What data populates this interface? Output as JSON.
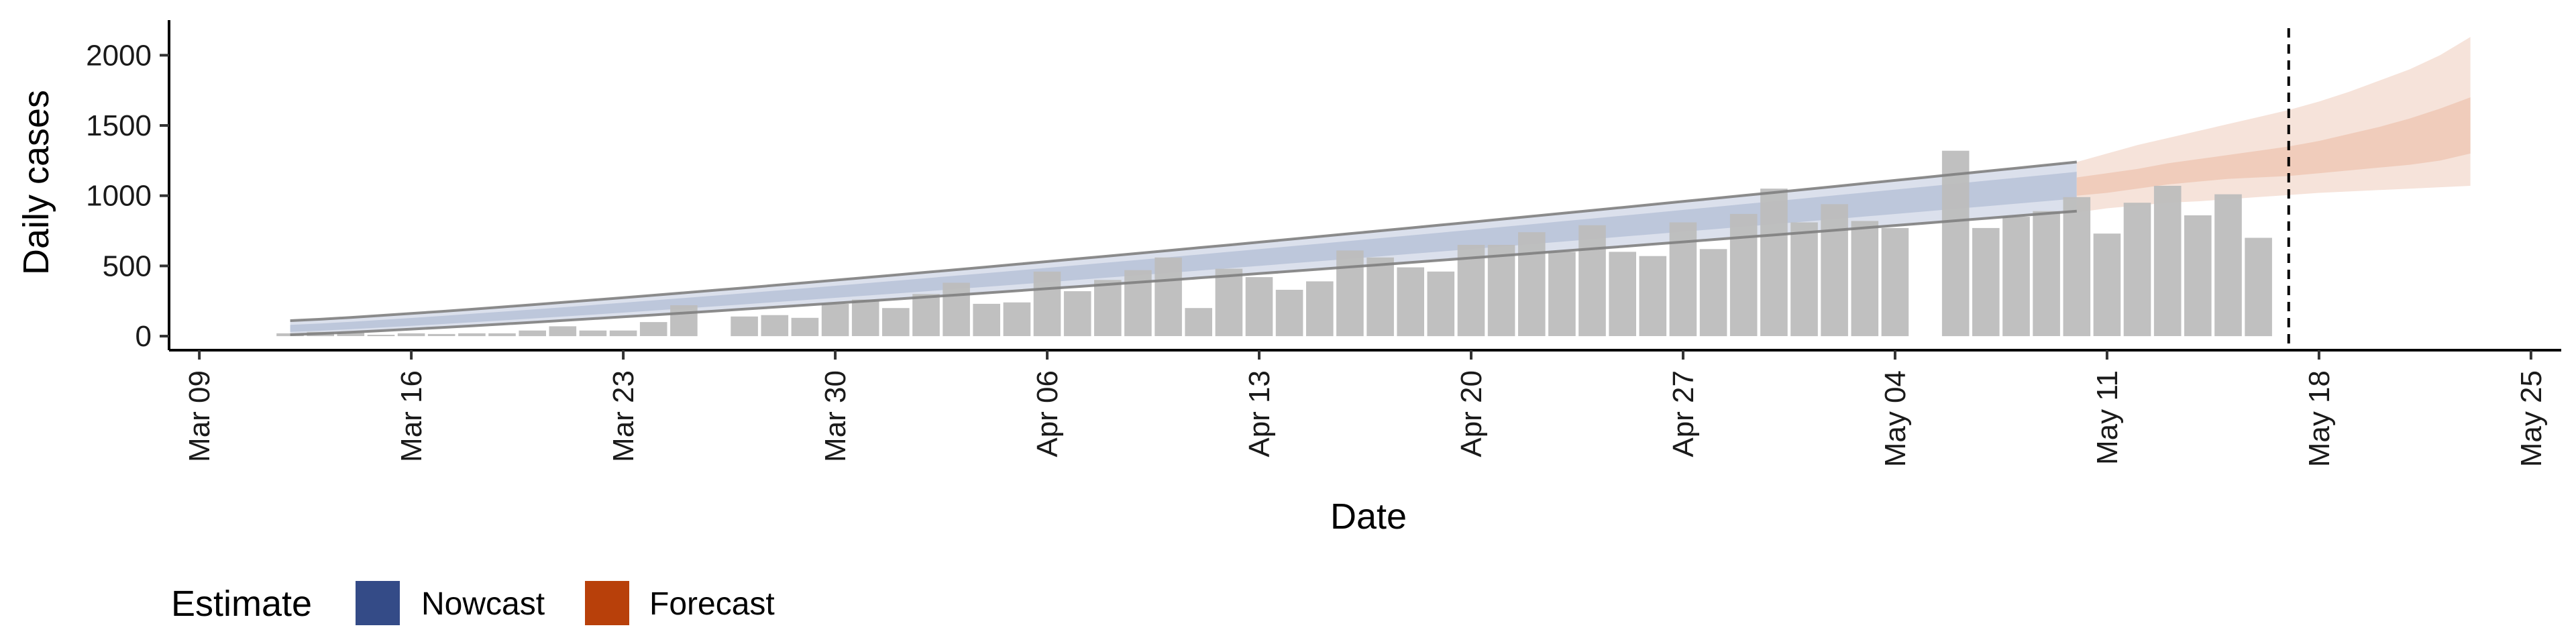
{
  "chart_data": {
    "type": "bar",
    "xlabel": "Date",
    "ylabel": "Daily cases",
    "x_tick_labels": [
      "Mar 09",
      "Mar 16",
      "Mar 23",
      "Mar 30",
      "Apr 06",
      "Apr 13",
      "Apr 20",
      "Apr 27",
      "May 04",
      "May 11",
      "May 18",
      "May 25"
    ],
    "y_ticks": [
      0,
      500,
      1000,
      1500,
      2000
    ],
    "ylim": [
      -100,
      2250
    ],
    "xlim": [
      "2020-03-08",
      "2020-05-26"
    ],
    "start_date": "2020-03-12",
    "daily_cases": [
      20,
      30,
      25,
      10,
      20,
      15,
      20,
      20,
      40,
      70,
      40,
      40,
      100,
      220,
      null,
      140,
      150,
      130,
      230,
      260,
      200,
      300,
      380,
      230,
      240,
      460,
      320,
      400,
      470,
      560,
      200,
      480,
      420,
      330,
      390,
      610,
      560,
      490,
      460,
      650,
      650,
      740,
      600,
      790,
      600,
      570,
      810,
      620,
      870,
      1050,
      810,
      940,
      820,
      770,
      null,
      1320,
      770,
      850,
      890,
      990,
      730,
      950,
      1070,
      860,
      1010,
      700
    ],
    "nowcast": {
      "dates_range": [
        "2020-03-12",
        "2020-05-10"
      ],
      "median_start": 55,
      "median_end": 1080,
      "outer_start": [
        10,
        110
      ],
      "outer_end": [
        890,
        1240
      ],
      "inner_start": [
        30,
        80
      ],
      "inner_end": [
        980,
        1170
      ]
    },
    "forecast": {
      "dates_range": [
        "2020-05-10",
        "2020-05-23"
      ],
      "outer_lower": [
        880,
        910,
        930,
        950,
        960,
        975,
        990,
        1005,
        1020,
        1030,
        1040,
        1050,
        1060,
        1070
      ],
      "outer_upper": [
        1240,
        1300,
        1360,
        1410,
        1460,
        1510,
        1560,
        1610,
        1670,
        1740,
        1820,
        1900,
        2000,
        2130
      ],
      "inner_lower": [
        1000,
        1020,
        1050,
        1080,
        1100,
        1120,
        1130,
        1140,
        1160,
        1180,
        1200,
        1220,
        1250,
        1300
      ],
      "inner_upper": [
        1130,
        1160,
        1190,
        1230,
        1260,
        1290,
        1320,
        1350,
        1390,
        1440,
        1490,
        1550,
        1620,
        1700
      ]
    },
    "vline_date": "2020-05-17",
    "legend": {
      "title": "Estimate",
      "entries": [
        {
          "label": "Nowcast",
          "color": "#344b87"
        },
        {
          "label": "Forecast",
          "color": "#b8400a"
        }
      ],
      "position": "bottom-left"
    },
    "colors": {
      "bars": "#bdbdbd",
      "nowcast_band": "#cfd6e6",
      "nowcast_inner": "#a9b5d1",
      "forecast_outer": "#f6e3da",
      "forecast_inner": "#eec8b5",
      "ci_lines": "#7f7f7f"
    },
    "grid": false
  }
}
